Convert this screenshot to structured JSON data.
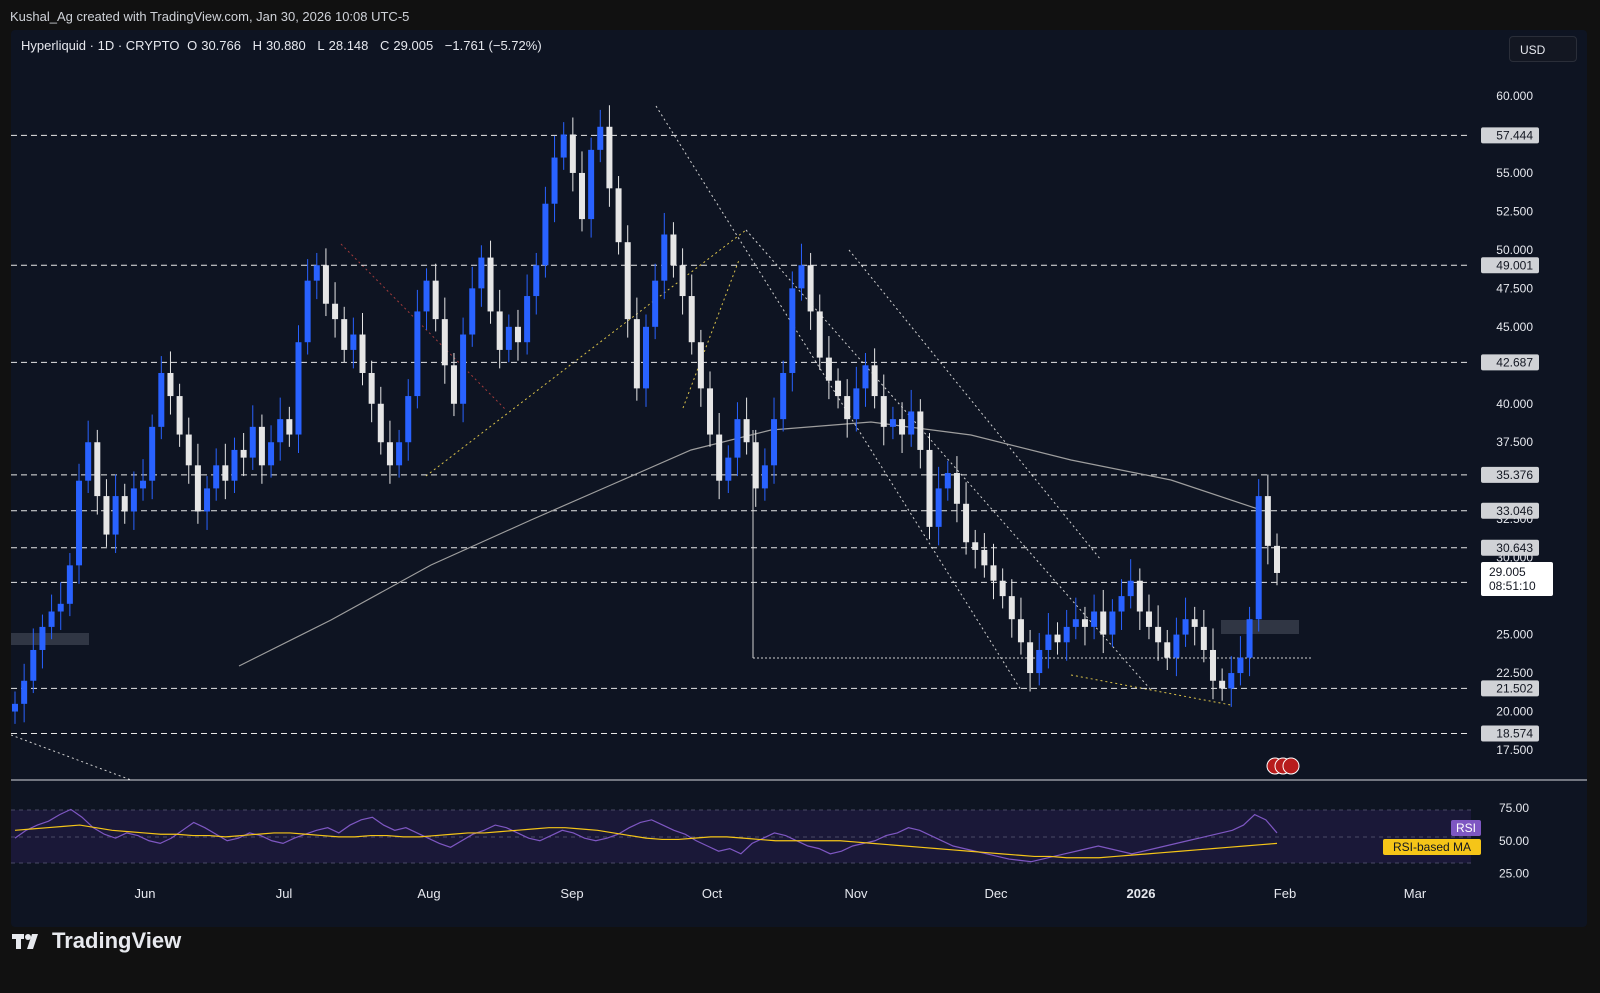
{
  "credit": "Kushal_Ag created with TradingView.com, Jan 30, 2026 10:08 UTC-5",
  "legend": {
    "symbol": "Hyperliquid · 1D · CRYPTO",
    "open_label": "O",
    "open": "30.766",
    "high_label": "H",
    "high": "30.880",
    "low_label": "L",
    "low": "28.148",
    "close_label": "C",
    "close": "29.005",
    "change": "−1.761 (−5.72%)"
  },
  "currency": "USD",
  "brand": "TradingView",
  "colors": {
    "background": "#0e1422",
    "up_candle": "#2962ff",
    "down_candle": "#e6e6e6",
    "rsi_line": "#7e57c2",
    "rsi_ma": "#f5c518",
    "ma_line": "#9e9e9e"
  },
  "chart_data": [
    {
      "type": "candlestick",
      "title": "Hyperliquid · 1D · CRYPTO",
      "x_ticks": [
        "Jun",
        "Jul",
        "Aug",
        "Sep",
        "Oct",
        "Nov",
        "Dec",
        "2026",
        "Feb",
        "Mar"
      ],
      "y_ticks": [
        "60.000",
        "55.000",
        "52.500",
        "50.000",
        "47.500",
        "45.000",
        "40.000",
        "37.500",
        "32.500",
        "30.000",
        "25.000",
        "22.500",
        "20.000",
        "17.500"
      ],
      "ylim": [
        17.5,
        60
      ],
      "horizontal_levels": [
        "57.444",
        "49.001",
        "42.687",
        "35.376",
        "33.046",
        "30.643",
        "28.391",
        "21.502",
        "18.574"
      ],
      "last_price_label": "29.005",
      "countdown_label": "08:51:10",
      "series": [
        {
          "name": "Hyperliquid",
          "close": [
            20.5,
            22.0,
            24.0,
            25.5,
            26.5,
            27.0,
            29.5,
            35.0,
            37.5,
            34.0,
            31.5,
            34.0,
            33.0,
            34.5,
            35.0,
            38.5,
            42.0,
            40.5,
            38.0,
            36.0,
            33.0,
            34.5,
            36.0,
            35.0,
            37.0,
            36.5,
            38.5,
            36.0,
            37.5,
            39.0,
            38.0,
            44.0,
            48.0,
            49.0,
            46.5,
            45.5,
            43.5,
            44.5,
            42.0,
            40.0,
            37.5,
            36.0,
            37.5,
            40.5,
            46.0,
            48.0,
            45.5,
            42.5,
            40.0,
            44.5,
            47.5,
            49.5,
            46.0,
            43.5,
            45.0,
            44.0,
            47.0,
            49.0,
            53.0,
            56.0,
            57.5,
            55.0,
            52.0,
            56.5,
            58.0,
            54.0,
            50.5,
            45.5,
            41.0,
            45.0,
            48.0,
            51.0,
            49.0,
            47.0,
            44.0,
            41.0,
            38.0,
            35.0,
            36.5,
            39.0,
            37.5,
            34.5,
            36.0,
            39.0,
            42.0,
            47.5,
            49.0,
            46.0,
            43.0,
            41.5,
            40.5,
            39.0,
            41.0,
            42.5,
            40.5,
            38.5,
            39.0,
            38.0,
            39.5,
            37.0,
            32.0,
            34.5,
            35.5,
            33.5,
            31.0,
            30.5,
            29.5,
            28.5,
            27.5,
            26.0,
            24.5,
            22.5,
            24.0,
            25.0,
            24.5,
            25.5,
            26.0,
            25.5,
            26.5,
            25.0,
            26.5,
            27.5,
            28.5,
            26.5,
            25.5,
            24.5,
            23.5,
            25.0,
            26.0,
            25.5,
            24.0,
            22.0,
            21.5,
            22.5,
            23.5,
            26.0,
            34.0,
            30.766,
            29.005
          ]
        }
      ]
    },
    {
      "type": "line",
      "title": "RSI",
      "y_ticks": [
        "75.00",
        "50.00",
        "25.00"
      ],
      "ylim": [
        20,
        85
      ],
      "series": [
        {
          "name": "RSI",
          "values": [
            52,
            58,
            62,
            65,
            70,
            74,
            68,
            60,
            55,
            52,
            56,
            54,
            50,
            48,
            52,
            58,
            64,
            60,
            55,
            50,
            52,
            56,
            54,
            50,
            48,
            52,
            55,
            58,
            60,
            56,
            62,
            66,
            68,
            62,
            58,
            60,
            56,
            52,
            48,
            45,
            50,
            55,
            58,
            62,
            60,
            56,
            52,
            50,
            54,
            58,
            56,
            52,
            50,
            52,
            55,
            60,
            64,
            66,
            62,
            58,
            55,
            50,
            46,
            42,
            44,
            40,
            48,
            52,
            56,
            54,
            50,
            46,
            44,
            40,
            42,
            46,
            48,
            50,
            54,
            56,
            60,
            58,
            54,
            50,
            46,
            44,
            42,
            40,
            38,
            36,
            35,
            34,
            36,
            38,
            40,
            42,
            44,
            46,
            44,
            42,
            40,
            42,
            44,
            46,
            48,
            50,
            52,
            54,
            56,
            58,
            62,
            70,
            66,
            56
          ]
        },
        {
          "name": "RSI-based MA",
          "values": [
            58,
            59,
            60,
            61,
            62,
            60,
            58,
            57,
            56,
            55,
            55,
            54,
            54,
            53,
            54,
            55,
            56,
            56,
            55,
            54,
            53,
            53,
            54,
            54,
            53,
            53,
            54,
            55,
            56,
            56,
            57,
            58,
            59,
            60,
            60,
            59,
            58,
            56,
            54,
            52,
            51,
            51,
            52,
            53,
            53,
            52,
            51,
            50,
            50,
            50,
            50,
            50,
            49,
            48,
            47,
            46,
            45,
            44,
            43,
            42,
            41,
            40,
            39,
            38,
            38,
            37,
            37,
            37,
            38,
            39,
            40,
            41,
            42,
            43,
            44,
            45,
            46,
            47,
            48
          ]
        }
      ]
    }
  ],
  "rsi_labels": {
    "rsi": "RSI",
    "ma": "RSI-based MA"
  }
}
